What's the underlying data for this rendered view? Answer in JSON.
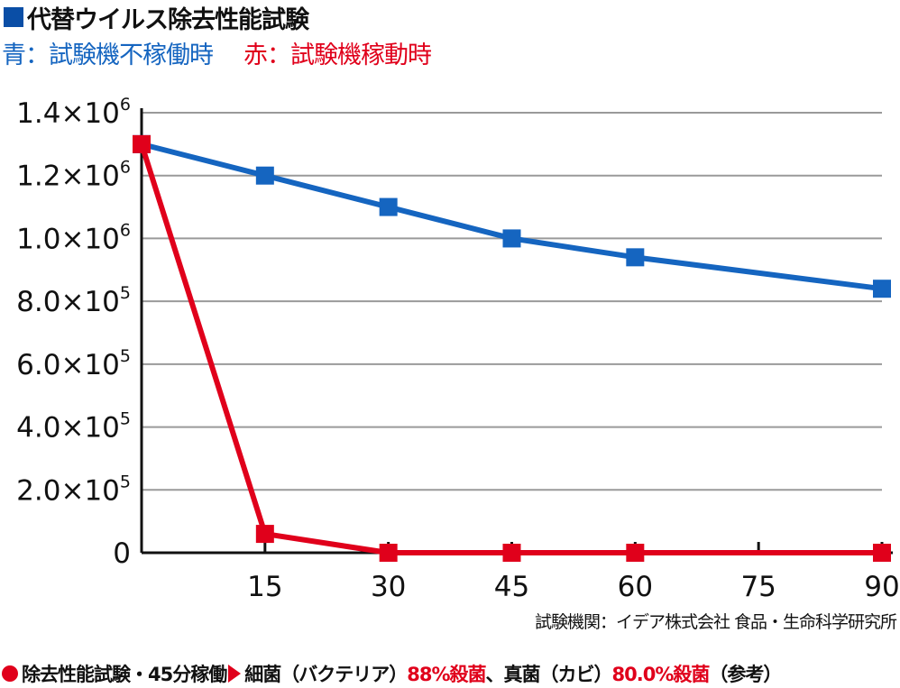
{
  "title": "代替ウイルス除去性能試験",
  "legend": {
    "blue": "青：試験機不稼働時",
    "red": "赤：試験機稼動時"
  },
  "source": "試験機関：イデア株式会社 食品・生命科学研究所",
  "footer": {
    "part1": "除去性能試験・45分稼働",
    "part2": "細菌（バクテリア）",
    "part3": "88%殺菌",
    "part4": "、真菌（カビ）",
    "part5": "80.0%殺菌",
    "part6": "（参考）"
  },
  "colors": {
    "blue": "#1565c0",
    "red": "#e0001b",
    "title_square": "#0a4ea6",
    "grid": "#9a9a9a"
  },
  "chart_data": {
    "type": "line",
    "x": [
      0,
      15,
      30,
      45,
      60,
      75,
      90
    ],
    "x_tick_labels": [
      "15",
      "30",
      "45",
      "60",
      "75",
      "90"
    ],
    "x_tick_values": [
      15,
      30,
      45,
      60,
      75,
      90
    ],
    "y_tick_labels": [
      {
        "v": 0,
        "base": "0",
        "exp": ""
      },
      {
        "v": 200000,
        "base": "2.0×10",
        "exp": "5"
      },
      {
        "v": 400000,
        "base": "4.0×10",
        "exp": "5"
      },
      {
        "v": 600000,
        "base": "6.0×10",
        "exp": "5"
      },
      {
        "v": 800000,
        "base": "8.0×10",
        "exp": "5"
      },
      {
        "v": 1000000,
        "base": "1.0×10",
        "exp": "6"
      },
      {
        "v": 1200000,
        "base": "1.2×10",
        "exp": "6"
      },
      {
        "v": 1400000,
        "base": "1.4×10",
        "exp": "6"
      }
    ],
    "ylim": [
      0,
      1400000
    ],
    "xlim": [
      0,
      90
    ],
    "grid": true,
    "series": [
      {
        "color": "#1565c0",
        "x": [
          0,
          15,
          30,
          45,
          60,
          90
        ],
        "values": [
          1300000,
          1200000,
          1100000,
          1000000,
          940000,
          840000
        ]
      },
      {
        "color": "#e0001b",
        "x": [
          0,
          15,
          30,
          45,
          60,
          90
        ],
        "values": [
          1300000,
          60000,
          0,
          0,
          0,
          0
        ]
      }
    ]
  }
}
